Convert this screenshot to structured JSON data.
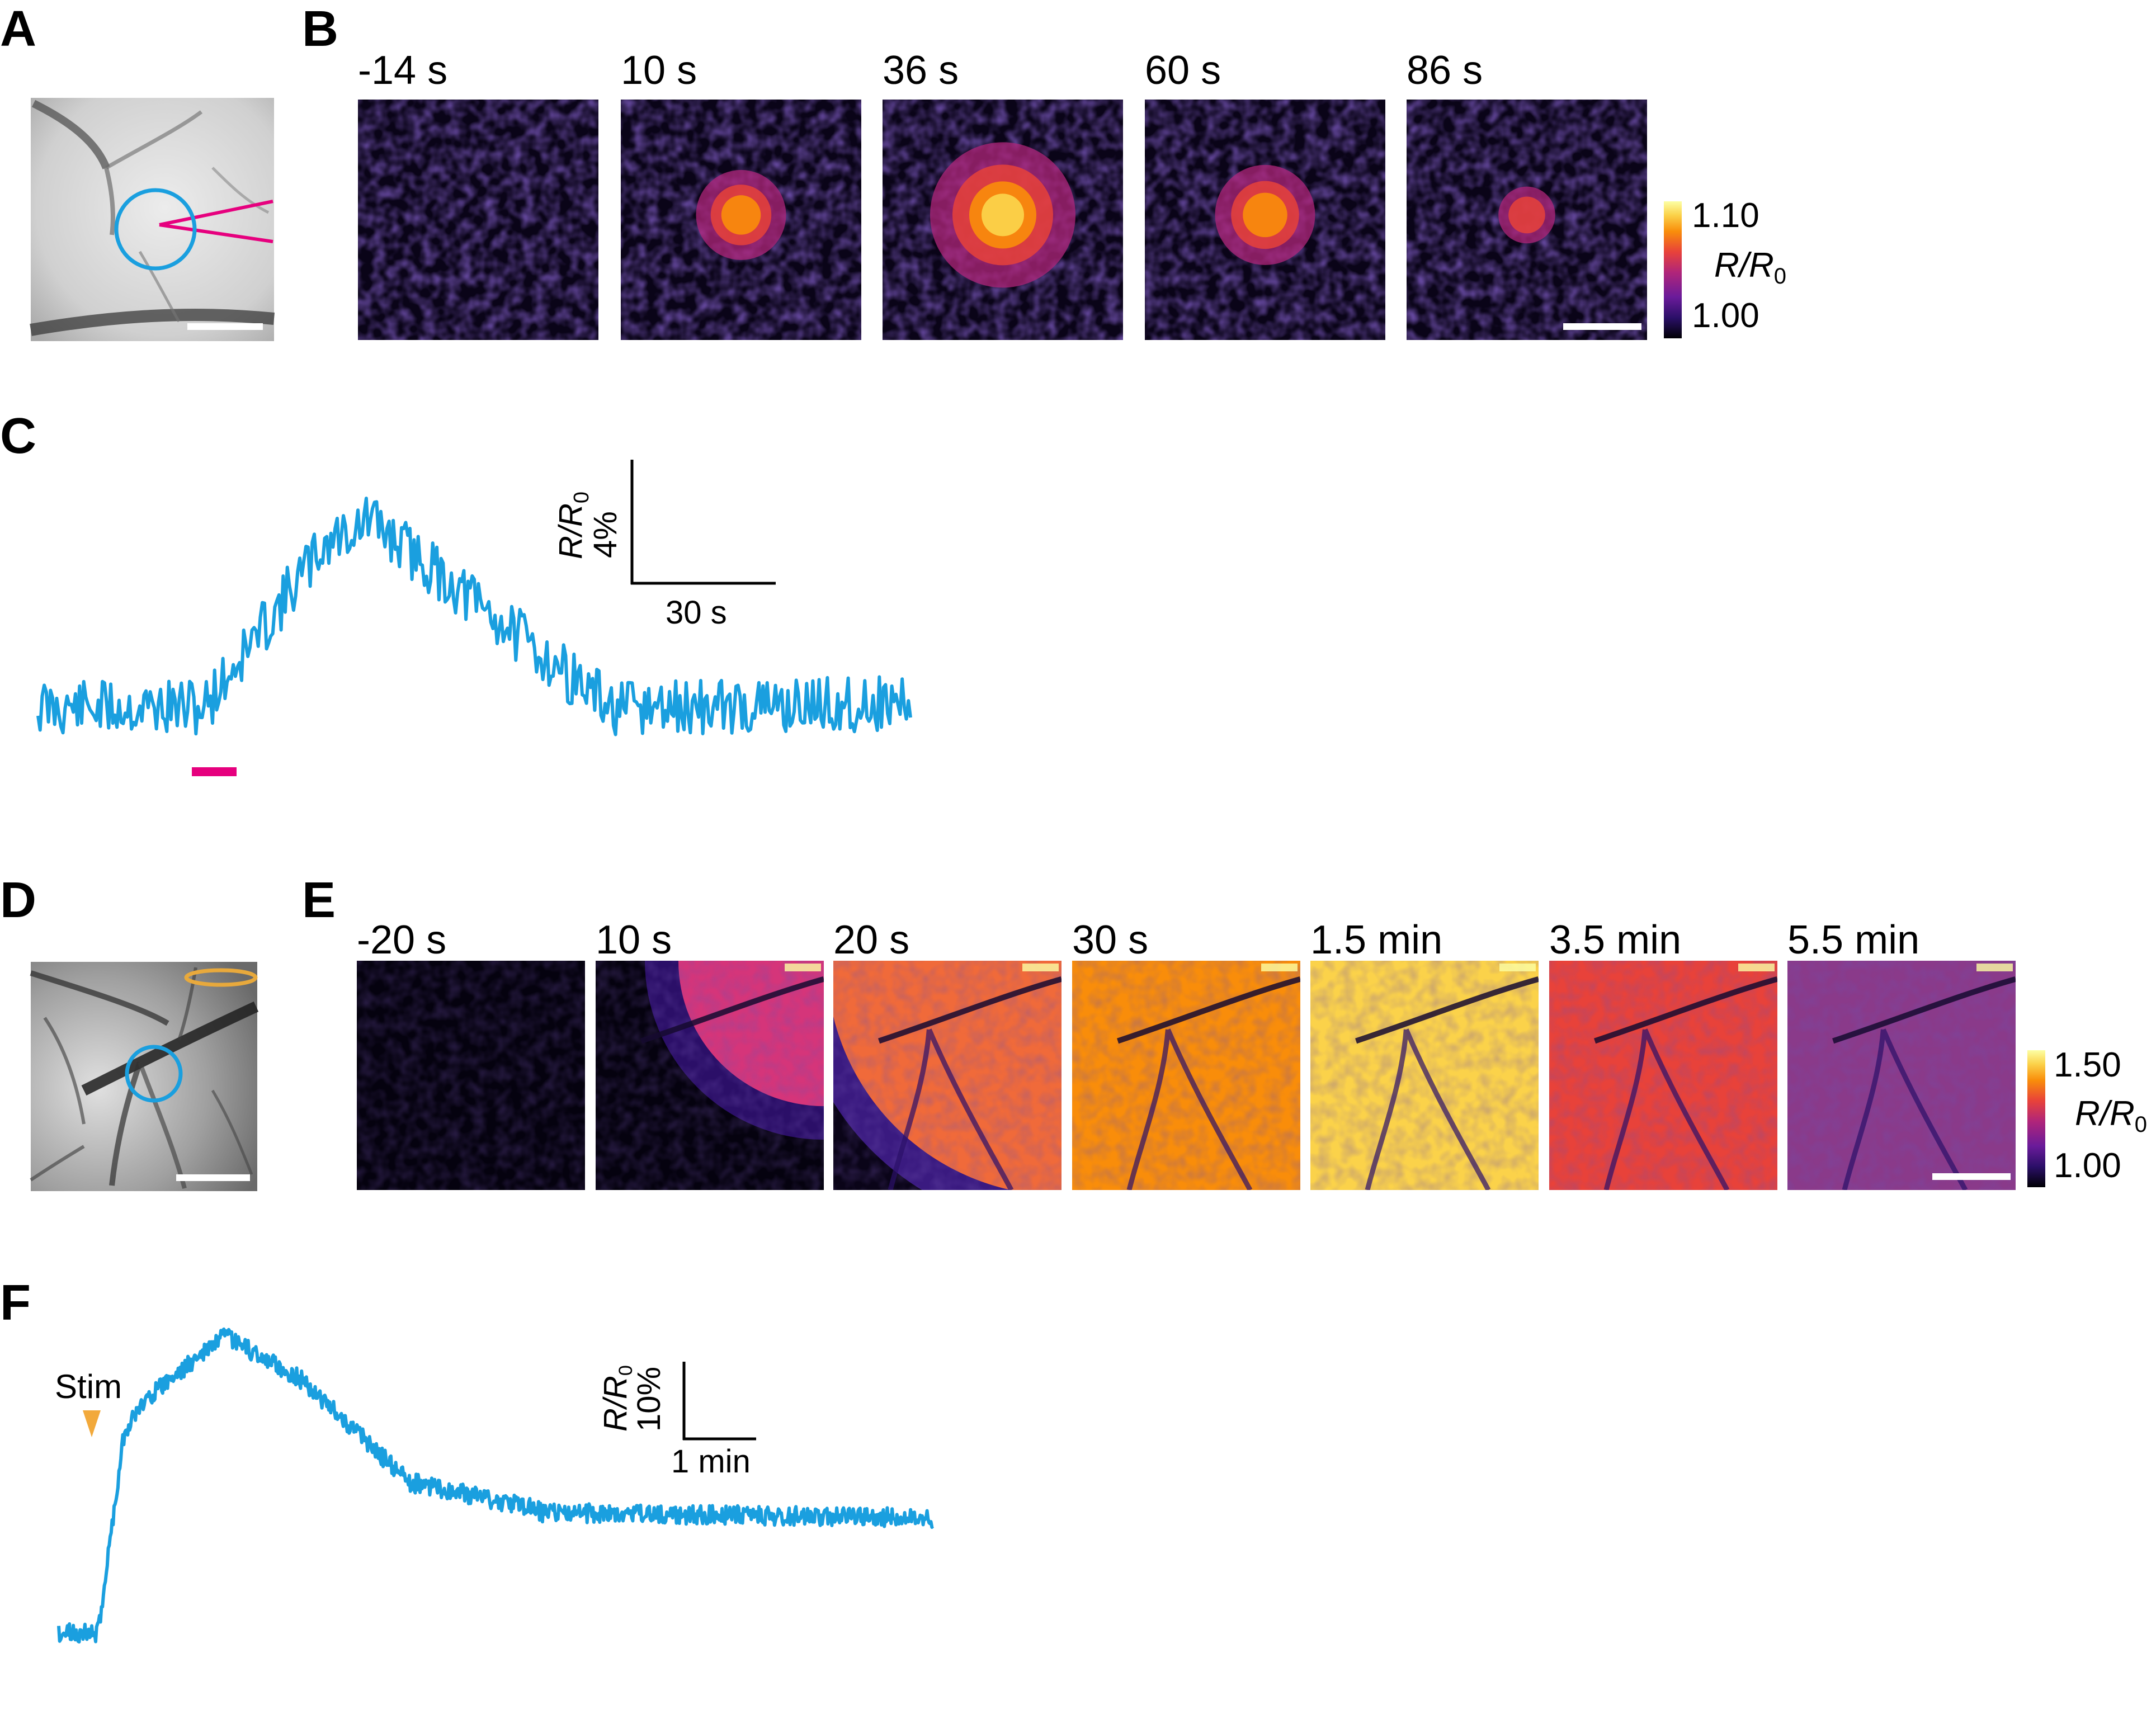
{
  "panels": {
    "A": {
      "letter": "A"
    },
    "B": {
      "letter": "B",
      "time_labels": [
        "-14 s",
        "10 s",
        "36 s",
        "60 s",
        "86 s"
      ]
    },
    "C": {
      "letter": "C",
      "scale_y": "4%",
      "scale_x": "30 s"
    },
    "D": {
      "letter": "D"
    },
    "E": {
      "letter": "E",
      "time_labels": [
        "-20 s",
        "10 s",
        "20 s",
        "30 s",
        "1.5 min",
        "3.5 min",
        "5.5 min"
      ]
    },
    "F": {
      "letter": "F",
      "stim_label": "Stim",
      "scale_y": "10%",
      "scale_x": "1 min"
    }
  },
  "colorbars": {
    "B": {
      "max": "1.10",
      "min": "1.00",
      "label_main": "R/R",
      "label_sub": "0"
    },
    "E": {
      "max": "1.50",
      "min": "1.00",
      "label_main": "R/R",
      "label_sub": "0"
    }
  },
  "scale_axis_label": {
    "main": "R/R",
    "sub": "0"
  },
  "colors": {
    "trace": "#1a9fdf",
    "stim_bar": "#e6007e",
    "stim_arrow": "#f2a93b",
    "roi_circle": "#1a9fdf",
    "electrode": "#e6007e",
    "ring": "#e8a93c"
  },
  "colormap": [
    "#000004",
    "#2b0f68",
    "#6a1b9a",
    "#b0257a",
    "#e8423a",
    "#f98d0a",
    "#fbd24a",
    "#fcffa4"
  ]
}
